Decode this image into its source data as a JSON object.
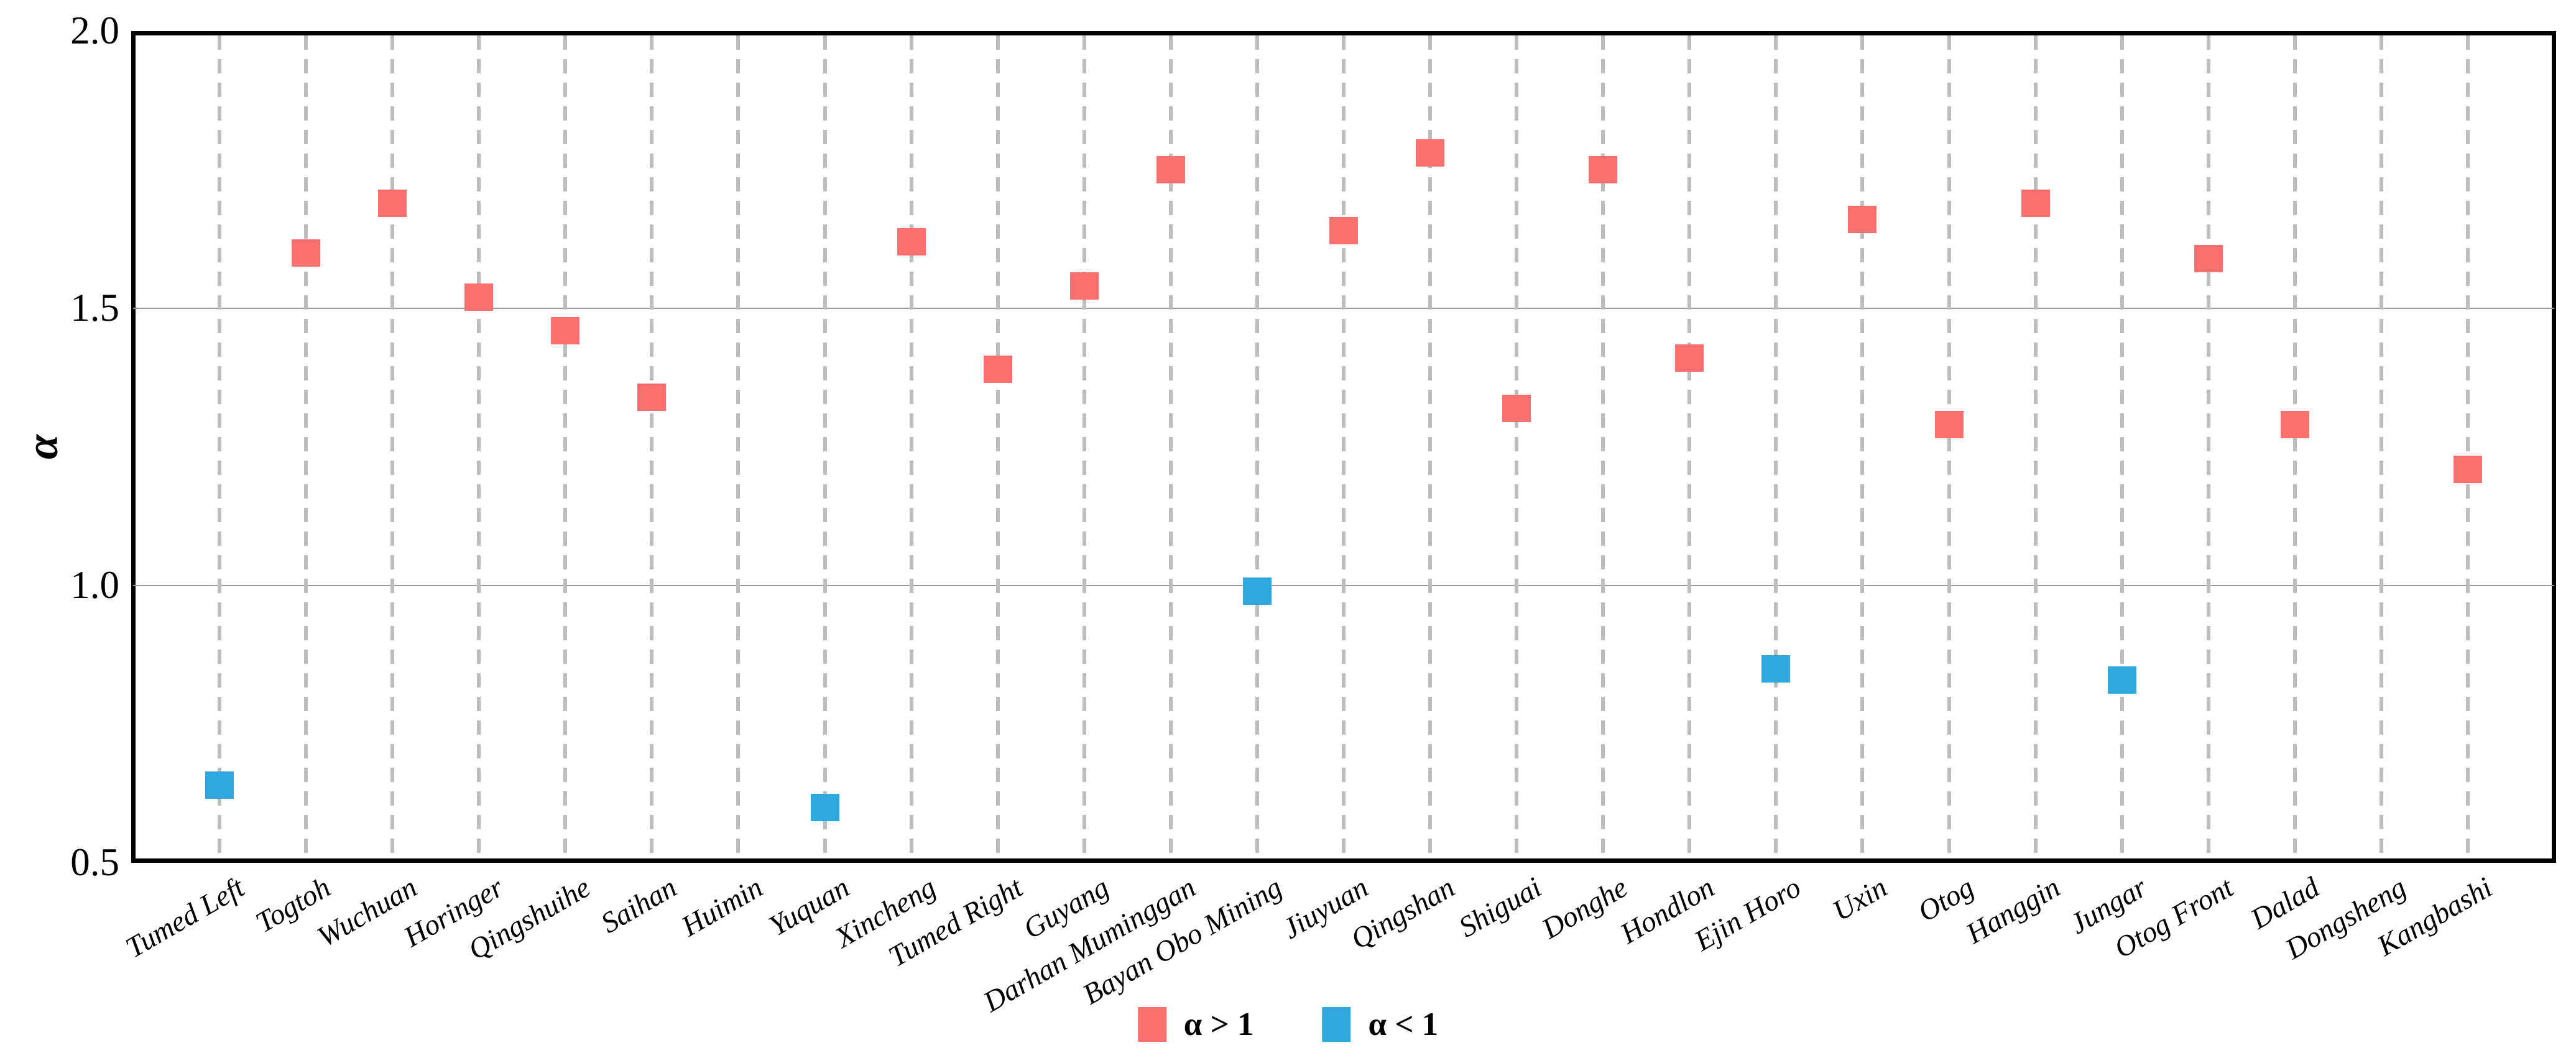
{
  "chart_data": {
    "type": "scatter",
    "title": "",
    "xlabel": "",
    "ylabel": "α",
    "ylim": [
      0.5,
      2.0
    ],
    "ytick_labels": [
      "2.0",
      "1.5",
      "1.0",
      "0.5"
    ],
    "ytick_values": [
      2.0,
      1.5,
      1.0,
      0.5
    ],
    "horizontal_gridlines": [
      1.5,
      1.0
    ],
    "vertical_gridlines": "dashed, one per category",
    "grid_on": true,
    "marker_shape": "square",
    "threshold": 1,
    "categories": [
      "Tumed Left",
      "Togtoh",
      "Wuchuan",
      "Horinger",
      "Qingshuihe",
      "Saihan",
      "Huimin",
      "Yuquan",
      "Xincheng",
      "Tumed Right",
      "Guyang",
      "Darhan Muminggan",
      "Bayan Obo Mining",
      "Jiuyuan",
      "Qingshan",
      "Shiguai",
      "Donghe",
      "Hondlon",
      "Ejin Horo",
      "Uxin",
      "Otog",
      "Hanggin",
      "Jungar",
      "Otog Front",
      "Dalad",
      "Dongsheng",
      "Kangbashi"
    ],
    "values": [
      0.64,
      1.6,
      1.69,
      1.52,
      1.46,
      1.34,
      null,
      0.6,
      1.62,
      1.39,
      1.54,
      1.75,
      0.99,
      1.64,
      1.78,
      1.32,
      1.75,
      1.41,
      0.85,
      1.66,
      1.29,
      1.69,
      0.83,
      1.59,
      1.29,
      null,
      1.21
    ],
    "legend": {
      "position": "bottom-center",
      "entries": [
        {
          "label": "α > 1",
          "color": "#FB6F6F"
        },
        {
          "label": "α < 1",
          "color": "#2FA8DF"
        }
      ]
    },
    "colors": {
      "above_threshold": "#FB6F6F",
      "below_threshold": "#2FA8DF",
      "solid_grid": "#9b9b9b",
      "dashed_grid": "#bdbdbd",
      "axis": "#000000",
      "background": "#ffffff"
    }
  }
}
